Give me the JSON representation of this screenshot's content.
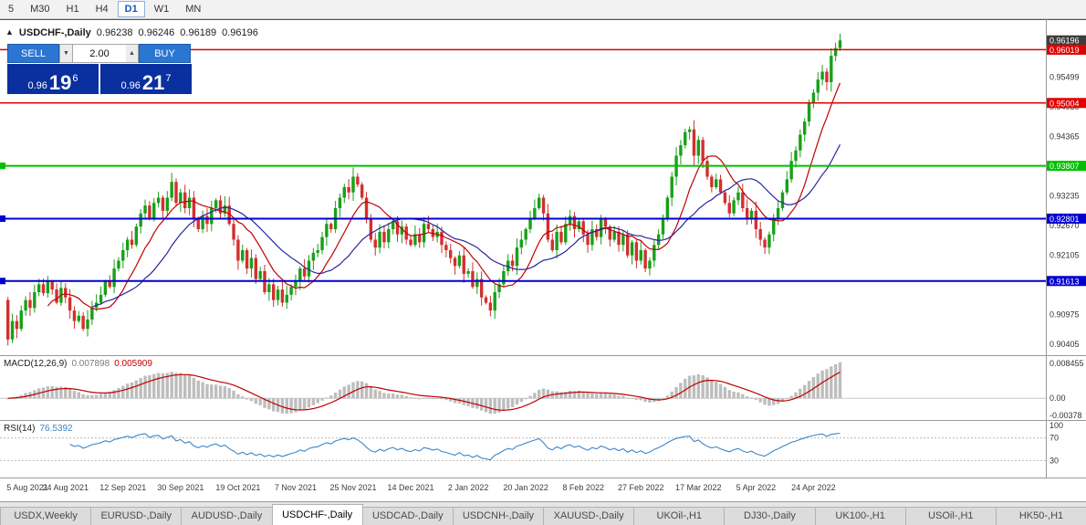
{
  "toolbar": {
    "timeframes": [
      {
        "label": "5",
        "active": false
      },
      {
        "label": "M30",
        "active": false
      },
      {
        "label": "H1",
        "active": false
      },
      {
        "label": "H4",
        "active": false
      },
      {
        "label": "D1",
        "active": true
      },
      {
        "label": "W1",
        "active": false
      },
      {
        "label": "MN",
        "active": false
      }
    ]
  },
  "chart_header": {
    "collapse_icon": "▲",
    "symbol": "USDCHF-,Daily",
    "open": "0.96238",
    "high": "0.96246",
    "low": "0.96189",
    "close": "0.96196"
  },
  "trade_panel": {
    "sell_label": "SELL",
    "buy_label": "BUY",
    "lot": "2.00",
    "spin_down_icon": "▼",
    "spin_up_icon": "▲",
    "sell_price": {
      "prefix": "0.96",
      "big": "19",
      "sup": "6"
    },
    "buy_price": {
      "prefix": "0.96",
      "big": "21",
      "sup": "7"
    }
  },
  "macd": {
    "label": "MACD(12,26,9)",
    "value1": "0.007898",
    "value2": "0.005909",
    "axis": [
      "0.008455",
      "0.00",
      "-0.00378"
    ]
  },
  "rsi": {
    "label": "RSI(14)",
    "value": "76.5392",
    "axis": [
      "100",
      "70",
      "30"
    ],
    "levels": [
      70,
      30
    ],
    "period": 14
  },
  "price_axis": {
    "ticks": [
      {
        "label": "0.95499",
        "price": 0.95499
      },
      {
        "label": "0.94930",
        "price": 0.9493
      },
      {
        "label": "0.94365",
        "price": 0.94365
      },
      {
        "label": "0.93235",
        "price": 0.93235
      },
      {
        "label": "0.92670",
        "price": 0.9267
      },
      {
        "label": "0.92105",
        "price": 0.92105
      },
      {
        "label": "0.90975",
        "price": 0.90975
      },
      {
        "label": "0.90405",
        "price": 0.90405
      }
    ],
    "tags": [
      {
        "label": "0.96196",
        "price": 0.96196,
        "color": "#3d3d3d"
      },
      {
        "label": "0.96019",
        "price": 0.96019,
        "color": "#e00000"
      },
      {
        "label": "0.95004",
        "price": 0.95004,
        "color": "#e00000"
      },
      {
        "label": "0.93807",
        "price": 0.93807,
        "color": "#00c000"
      },
      {
        "label": "0.92801",
        "price": 0.92801,
        "color": "#0000d0"
      },
      {
        "label": "0.91613",
        "price": 0.91613,
        "color": "#0000d0"
      }
    ]
  },
  "hlines": [
    {
      "price": 0.96019,
      "color": "#e00000",
      "width": 1.5,
      "left_mark": false
    },
    {
      "price": 0.95004,
      "color": "#e00000",
      "width": 1.5,
      "left_mark": false
    },
    {
      "price": 0.93807,
      "color": "#00c000",
      "width": 2,
      "left_mark": true
    },
    {
      "price": 0.92801,
      "color": "#0000d0",
      "width": 2,
      "left_mark": true
    },
    {
      "price": 0.91613,
      "color": "#0000d0",
      "width": 2,
      "left_mark": true
    }
  ],
  "time_axis": [
    "5 Aug 2021",
    "24 Aug 2021",
    "12 Sep 2021",
    "30 Sep 2021",
    "19 Oct 2021",
    "7 Nov 2021",
    "25 Nov 2021",
    "14 Dec 2021",
    "2 Jan 2022",
    "20 Jan 2022",
    "8 Feb 2022",
    "27 Feb 2022",
    "17 Mar 2022",
    "5 Apr 2022",
    "24 Apr 2022"
  ],
  "tabs": [
    {
      "label": "USDX,Weekly",
      "active": false
    },
    {
      "label": "EURUSD-,Daily",
      "active": false
    },
    {
      "label": "AUDUSD-,Daily",
      "active": false
    },
    {
      "label": "USDCHF-,Daily",
      "active": true
    },
    {
      "label": "USDCAD-,Daily",
      "active": false
    },
    {
      "label": "USDCNH-,Daily",
      "active": false
    },
    {
      "label": "XAUUSD-,Daily",
      "active": false
    },
    {
      "label": "UKOil-,H1",
      "active": false
    },
    {
      "label": "DJ30-,Daily",
      "active": false
    },
    {
      "label": "UK100-,H1",
      "active": false
    },
    {
      "label": "USOil-,H1",
      "active": false
    },
    {
      "label": "HK50-,H1",
      "active": false
    }
  ],
  "chart_data": {
    "type": "candlestick",
    "title": "USDCHF-,Daily",
    "ylim": [
      0.902,
      0.966
    ],
    "x_tick_every": 13,
    "open_first": 0.9125,
    "closes": [
      0.905,
      0.9085,
      0.907,
      0.9105,
      0.9125,
      0.911,
      0.914,
      0.9155,
      0.9138,
      0.916,
      0.9145,
      0.912,
      0.9148,
      0.913,
      0.9105,
      0.9085,
      0.9095,
      0.907,
      0.9088,
      0.911,
      0.912,
      0.9135,
      0.916,
      0.915,
      0.9185,
      0.92,
      0.922,
      0.924,
      0.923,
      0.9265,
      0.929,
      0.9305,
      0.928,
      0.931,
      0.932,
      0.9295,
      0.932,
      0.935,
      0.931,
      0.933,
      0.93,
      0.932,
      0.928,
      0.926,
      0.9285,
      0.927,
      0.93,
      0.9315,
      0.929,
      0.9305,
      0.927,
      0.924,
      0.92,
      0.922,
      0.9185,
      0.9205,
      0.9165,
      0.918,
      0.914,
      0.9155,
      0.9125,
      0.9145,
      0.912,
      0.9135,
      0.915,
      0.916,
      0.9185,
      0.917,
      0.92,
      0.9215,
      0.922,
      0.9245,
      0.927,
      0.926,
      0.93,
      0.932,
      0.934,
      0.933,
      0.936,
      0.9345,
      0.932,
      0.928,
      0.924,
      0.9225,
      0.9255,
      0.9235,
      0.926,
      0.9275,
      0.925,
      0.9265,
      0.924,
      0.923,
      0.925,
      0.9235,
      0.927,
      0.926,
      0.9245,
      0.9255,
      0.923,
      0.922,
      0.9205,
      0.919,
      0.921,
      0.9175,
      0.918,
      0.915,
      0.9165,
      0.913,
      0.912,
      0.9105,
      0.914,
      0.9155,
      0.918,
      0.92,
      0.919,
      0.9225,
      0.924,
      0.926,
      0.928,
      0.93,
      0.932,
      0.929,
      0.924,
      0.922,
      0.9255,
      0.9235,
      0.927,
      0.9285,
      0.926,
      0.9275,
      0.925,
      0.923,
      0.926,
      0.9245,
      0.928,
      0.9265,
      0.924,
      0.9255,
      0.923,
      0.925,
      0.921,
      0.9235,
      0.92,
      0.922,
      0.9185,
      0.92,
      0.923,
      0.925,
      0.928,
      0.932,
      0.936,
      0.94,
      0.942,
      0.9445,
      0.945,
      0.94,
      0.943,
      0.939,
      0.936,
      0.934,
      0.9355,
      0.933,
      0.931,
      0.929,
      0.9315,
      0.933,
      0.93,
      0.928,
      0.9295,
      0.926,
      0.924,
      0.9225,
      0.925,
      0.928,
      0.93,
      0.933,
      0.9355,
      0.939,
      0.941,
      0.944,
      0.9465,
      0.95,
      0.952,
      0.9545,
      0.956,
      0.954,
      0.959,
      0.9605,
      0.96196
    ],
    "moving_averages": [
      {
        "period": 10,
        "color": "#c00000"
      },
      {
        "period": 20,
        "color": "#26269e"
      }
    ],
    "macd_params": {
      "fast": 12,
      "slow": 26,
      "signal": 9
    },
    "colors": {
      "up": "#18a018",
      "down": "#d32f2f",
      "macd_hist": "#bdbdbd",
      "macd_signal": "#c00000",
      "rsi_line": "#3a87c8"
    }
  }
}
